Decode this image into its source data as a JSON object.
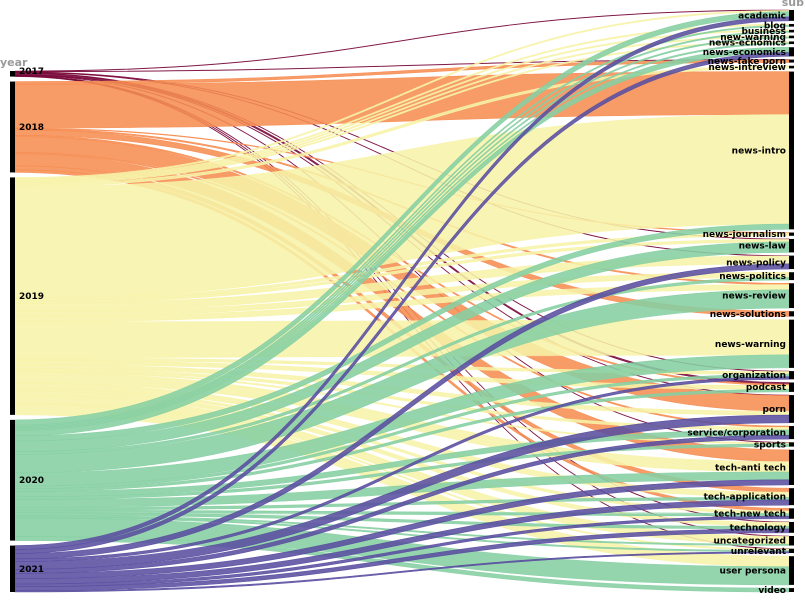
{
  "chart_data": {
    "type": "sankey",
    "dimensions": [
      {
        "label": "year",
        "side": "left"
      },
      {
        "label": "sub",
        "side": "right"
      }
    ],
    "year_colors": {
      "2017": "#7a0a3c",
      "2018": "#f68d52",
      "2019": "#f7f3a8",
      "2020": "#86cfa3",
      "2021": "#5a4ea0"
    },
    "years": [
      "2017",
      "2018",
      "2019",
      "2020",
      "2021"
    ],
    "categories": [
      "academic",
      "blog",
      "business",
      "new-warning",
      "news-ecnomics",
      "news-economics",
      "news-fake porn",
      "news-intreview",
      "news-intro",
      "news-journalism",
      "news-law",
      "news-policy",
      "news-politics",
      "news-review",
      "news-solutions",
      "news-warning",
      "organization",
      "podcast",
      "porn",
      "service/corporation",
      "sports",
      "tech-anti tech",
      "tech-application",
      "tech-new tech",
      "technology",
      "uncategorized",
      "unrelevant",
      "user persona",
      "video"
    ],
    "flows": [
      {
        "year": "2017",
        "category": "academic",
        "value": 0.3
      },
      {
        "year": "2017",
        "category": "news-fake porn",
        "value": 0.3
      },
      {
        "year": "2017",
        "category": "news-law",
        "value": 0.3
      },
      {
        "year": "2017",
        "category": "news-policy",
        "value": 0.3
      },
      {
        "year": "2017",
        "category": "organization",
        "value": 0.3
      },
      {
        "year": "2017",
        "category": "podcast",
        "value": 1.2
      },
      {
        "year": "2017",
        "category": "porn",
        "value": 0.3
      },
      {
        "year": "2017",
        "category": "sports",
        "value": 0.3
      },
      {
        "year": "2017",
        "category": "technology",
        "value": 0.3
      },
      {
        "year": "2017",
        "category": "uncategorized",
        "value": 0.3
      },
      {
        "year": "2017",
        "category": "unrelevant",
        "value": 0.3
      },
      {
        "year": "2018",
        "category": "news-fake porn",
        "value": 2
      },
      {
        "year": "2018",
        "category": "news-intro",
        "value": 33
      },
      {
        "year": "2018",
        "category": "news-journalism",
        "value": 0.5
      },
      {
        "year": "2018",
        "category": "news-review",
        "value": 1
      },
      {
        "year": "2018",
        "category": "news-solutions",
        "value": 4
      },
      {
        "year": "2018",
        "category": "podcast",
        "value": 1
      },
      {
        "year": "2018",
        "category": "porn",
        "value": 12
      },
      {
        "year": "2018",
        "category": "service/corporation",
        "value": 1
      },
      {
        "year": "2018",
        "category": "tech-anti tech",
        "value": 9
      },
      {
        "year": "2018",
        "category": "tech-application",
        "value": 3
      },
      {
        "year": "2018",
        "category": "tech-new tech",
        "value": 2
      },
      {
        "year": "2019",
        "category": "academic",
        "value": 1
      },
      {
        "year": "2019",
        "category": "blog",
        "value": 1
      },
      {
        "year": "2019",
        "category": "business",
        "value": 1
      },
      {
        "year": "2019",
        "category": "new-warning",
        "value": 1
      },
      {
        "year": "2019",
        "category": "news-ecnomics",
        "value": 1
      },
      {
        "year": "2019",
        "category": "news-intreview",
        "value": 2
      },
      {
        "year": "2019",
        "category": "news-intro",
        "value": 84
      },
      {
        "year": "2019",
        "category": "news-journalism",
        "value": 2
      },
      {
        "year": "2019",
        "category": "news-law",
        "value": 2
      },
      {
        "year": "2019",
        "category": "news-policy",
        "value": 6
      },
      {
        "year": "2019",
        "category": "news-politics",
        "value": 4
      },
      {
        "year": "2019",
        "category": "news-review",
        "value": 4
      },
      {
        "year": "2019",
        "category": "news-warning",
        "value": 27
      },
      {
        "year": "2019",
        "category": "organization",
        "value": 2
      },
      {
        "year": "2019",
        "category": "podcast",
        "value": 3
      },
      {
        "year": "2019",
        "category": "porn",
        "value": 3
      },
      {
        "year": "2019",
        "category": "service/corporation",
        "value": 2
      },
      {
        "year": "2019",
        "category": "sports",
        "value": 1
      },
      {
        "year": "2019",
        "category": "tech-anti tech",
        "value": 8
      },
      {
        "year": "2019",
        "category": "tech-application",
        "value": 4
      },
      {
        "year": "2019",
        "category": "tech-new tech",
        "value": 2
      },
      {
        "year": "2019",
        "category": "technology",
        "value": 3
      },
      {
        "year": "2019",
        "category": "uncategorized",
        "value": 6
      },
      {
        "year": "2019",
        "category": "unrelevant",
        "value": 1
      },
      {
        "year": "2019",
        "category": "user persona",
        "value": 8
      },
      {
        "year": "2020",
        "category": "academic",
        "value": 4
      },
      {
        "year": "2020",
        "category": "blog",
        "value": 1
      },
      {
        "year": "2020",
        "category": "business",
        "value": 1
      },
      {
        "year": "2020",
        "category": "new-warning",
        "value": 1
      },
      {
        "year": "2020",
        "category": "news-ecnomics",
        "value": 1
      },
      {
        "year": "2020",
        "category": "news-economics",
        "value": 4
      },
      {
        "year": "2020",
        "category": "news-intro",
        "value": 4
      },
      {
        "year": "2020",
        "category": "news-law",
        "value": 8
      },
      {
        "year": "2020",
        "category": "news-politics",
        "value": 2
      },
      {
        "year": "2020",
        "category": "news-review",
        "value": 14
      },
      {
        "year": "2020",
        "category": "news-warning",
        "value": 10
      },
      {
        "year": "2020",
        "category": "organization",
        "value": 2
      },
      {
        "year": "2020",
        "category": "podcast",
        "value": 2
      },
      {
        "year": "2020",
        "category": "service/corporation",
        "value": 4
      },
      {
        "year": "2020",
        "category": "sports",
        "value": 2
      },
      {
        "year": "2020",
        "category": "tech-anti tech",
        "value": 6
      },
      {
        "year": "2020",
        "category": "tech-application",
        "value": 2
      },
      {
        "year": "2020",
        "category": "tech-new tech",
        "value": 2
      },
      {
        "year": "2020",
        "category": "technology",
        "value": 2
      },
      {
        "year": "2020",
        "category": "uncategorized",
        "value": 1
      },
      {
        "year": "2020",
        "category": "unrelevant",
        "value": 1
      },
      {
        "year": "2020",
        "category": "user persona",
        "value": 14
      },
      {
        "year": "2020",
        "category": "video",
        "value": 3
      },
      {
        "year": "2021",
        "category": "academic",
        "value": 3
      },
      {
        "year": "2021",
        "category": "news-economics",
        "value": 3
      },
      {
        "year": "2021",
        "category": "news-policy",
        "value": 4
      },
      {
        "year": "2021",
        "category": "organization",
        "value": 2
      },
      {
        "year": "2021",
        "category": "porn",
        "value": 6
      },
      {
        "year": "2021",
        "category": "service/corporation",
        "value": 3
      },
      {
        "year": "2021",
        "category": "tech-anti tech",
        "value": 4
      },
      {
        "year": "2021",
        "category": "tech-application",
        "value": 4
      },
      {
        "year": "2021",
        "category": "tech-new tech",
        "value": 2
      },
      {
        "year": "2021",
        "category": "technology",
        "value": 3
      },
      {
        "year": "2021",
        "category": "unrelevant",
        "value": 1
      }
    ]
  }
}
